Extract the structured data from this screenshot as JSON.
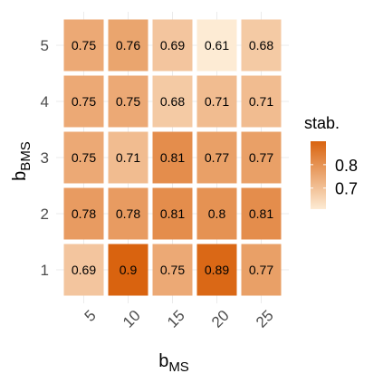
{
  "chart_data": {
    "type": "heatmap",
    "x": [
      "5",
      "10",
      "15",
      "20",
      "25"
    ],
    "y": [
      "1",
      "2",
      "3",
      "4",
      "5"
    ],
    "values": [
      [
        0.69,
        0.9,
        0.75,
        0.89,
        0.77
      ],
      [
        0.78,
        0.78,
        0.81,
        0.8,
        0.81
      ],
      [
        0.75,
        0.71,
        0.81,
        0.77,
        0.77
      ],
      [
        0.75,
        0.75,
        0.68,
        0.71,
        0.71
      ],
      [
        0.75,
        0.76,
        0.69,
        0.61,
        0.68
      ]
    ],
    "labels": [
      [
        "0.69",
        "0.9",
        "0.75",
        "0.89",
        "0.77"
      ],
      [
        "0.78",
        "0.78",
        "0.81",
        "0.8",
        "0.81"
      ],
      [
        "0.75",
        "0.71",
        "0.81",
        "0.77",
        "0.77"
      ],
      [
        "0.75",
        "0.75",
        "0.68",
        "0.71",
        "0.71"
      ],
      [
        "0.75",
        "0.76",
        "0.69",
        "0.61",
        "0.68"
      ]
    ],
    "xlabel": {
      "main": "b",
      "sub": "MS"
    },
    "ylabel": {
      "main": "b",
      "sub": "BMS"
    },
    "legend": {
      "title": "stab.",
      "ticks": [
        "0.8",
        "0.7"
      ],
      "tick_values": [
        0.8,
        0.7
      ],
      "range": [
        0.61,
        0.9
      ],
      "position": "right"
    },
    "colors": {
      "low": "#fdebd4",
      "high": "#d9630f",
      "grid": "#ebebeb"
    },
    "grid": true
  }
}
